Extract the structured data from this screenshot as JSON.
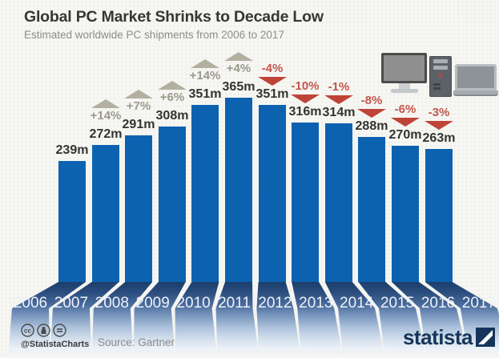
{
  "header": {
    "title": "Global PC Market Shrinks to Decade Low",
    "subtitle": "Estimated worldwide PC shipments from 2006 to 2017"
  },
  "chart_data": {
    "type": "bar",
    "title": "Global PC Market Shrinks to Decade Low",
    "subtitle": "Estimated worldwide PC shipments from 2006 to 2017",
    "categories": [
      "2006",
      "2007",
      "2008",
      "2009",
      "2010",
      "2011",
      "2012",
      "2013",
      "2014",
      "2015",
      "2016",
      "2017"
    ],
    "values": [
      239,
      272,
      291,
      308,
      351,
      365,
      351,
      316,
      314,
      288,
      270,
      263
    ],
    "value_labels": [
      "239m",
      "272m",
      "291m",
      "308m",
      "351m",
      "365m",
      "351m",
      "316m",
      "314m",
      "288m",
      "270m",
      "263m"
    ],
    "pct_change": [
      null,
      "+14%",
      "+7%",
      "+6%",
      "+14%",
      "+4%",
      "-4%",
      "-10%",
      "-1%",
      "-8%",
      "-6%",
      "-3%"
    ],
    "directions": [
      null,
      "up",
      "up",
      "up",
      "up",
      "up",
      "down",
      "down",
      "down",
      "down",
      "down",
      "down"
    ],
    "unit": "million units",
    "ylim": [
      0,
      365
    ],
    "grid": false,
    "legend": "none",
    "bar_color": "#0d62b0",
    "up_color": "#b4b0a1",
    "down_color": "#bf4438",
    "band_dark_color": "#1b3e6c",
    "year_label_color": "#eef2f9"
  },
  "icons": {
    "devices": [
      "desktop-monitor",
      "tower-pc",
      "laptop"
    ],
    "fan_glyph": "✳",
    "cc": [
      "cc",
      "by",
      "nd"
    ]
  },
  "footer": {
    "handle": "@StatistaCharts",
    "source": "Source: Gartner",
    "brand": "statista",
    "cc_equals": "="
  }
}
